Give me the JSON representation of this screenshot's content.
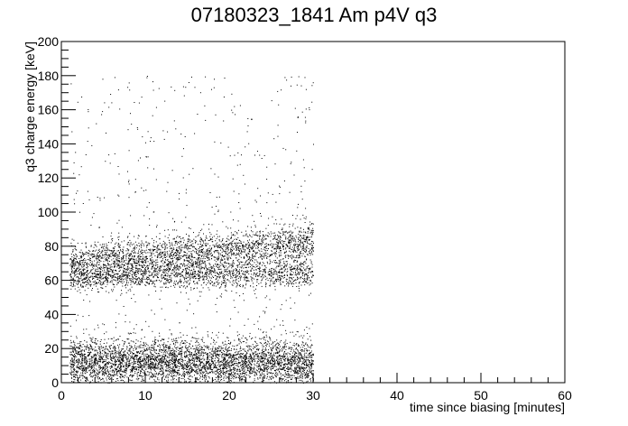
{
  "chart_data": {
    "type": "scatter",
    "title": "07180323_1841 Am p4V q3",
    "xlabel": "time since biasing [minutes]",
    "ylabel": "q3 charge energy [keV]",
    "xlim": [
      0,
      60
    ],
    "ylim": [
      0,
      200
    ],
    "x_ticks": [
      0,
      10,
      20,
      30,
      40,
      50,
      60
    ],
    "y_ticks": [
      0,
      20,
      40,
      60,
      80,
      100,
      120,
      140,
      160,
      180,
      200
    ],
    "grid": false,
    "legend": "none",
    "marker_color": "#000000",
    "data_extent": {
      "x_range": [
        1,
        30
      ],
      "y_range": [
        0,
        180
      ]
    },
    "density_bands": [
      {
        "name": "low-energy band",
        "x_range": [
          1,
          30
        ],
        "y_center_start": 12,
        "y_center_end": 12,
        "y_width": 14,
        "relative_density": 1.0
      },
      {
        "name": "main peak band",
        "x_range": [
          1,
          30
        ],
        "y_center_start": 70,
        "y_center_end": 82,
        "y_width": 12,
        "relative_density": 0.55
      },
      {
        "name": "secondary peak band",
        "x_range": [
          1,
          30
        ],
        "y_center_start": 62,
        "y_center_end": 64,
        "y_width": 8,
        "relative_density": 0.35
      },
      {
        "name": "background",
        "x_range": [
          1,
          30
        ],
        "y_range": [
          0,
          180
        ],
        "relative_density": 0.12
      }
    ]
  }
}
